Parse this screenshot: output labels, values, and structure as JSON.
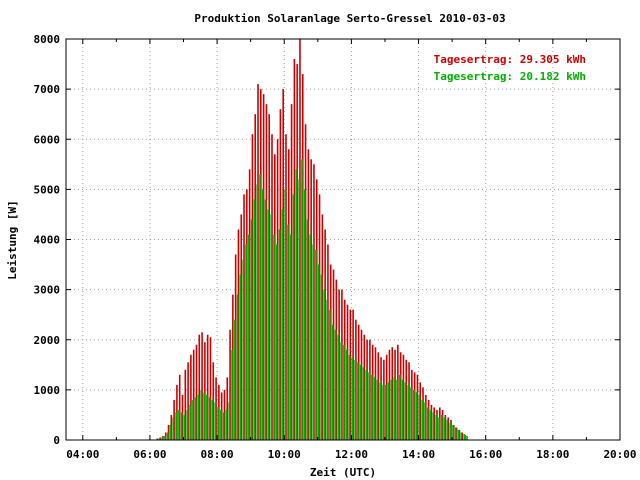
{
  "chart_data": {
    "type": "bar",
    "title": "Produktion Solaranlage Serto-Gressel 2010-03-03",
    "xlabel": "Zeit (UTC)",
    "ylabel": "Leistung [W]",
    "xlim": [
      3.5,
      20.0
    ],
    "ylim": [
      0,
      8000
    ],
    "xticks": [
      {
        "value": 4,
        "label": "04:00"
      },
      {
        "value": 6,
        "label": "06:00"
      },
      {
        "value": 8,
        "label": "08:00"
      },
      {
        "value": 10,
        "label": "10:00"
      },
      {
        "value": 12,
        "label": "12:00"
      },
      {
        "value": 14,
        "label": "14:00"
      },
      {
        "value": 16,
        "label": "16:00"
      },
      {
        "value": 18,
        "label": "18:00"
      },
      {
        "value": 20,
        "label": "20:00"
      }
    ],
    "yticks": [
      0,
      1000,
      2000,
      3000,
      4000,
      5000,
      6000,
      7000,
      8000
    ],
    "grid": true,
    "legend_position": "top-right",
    "x_start": 6.25,
    "x_step": 0.0833,
    "series": [
      {
        "legend": "Tagesertrag: 29.305 kWh",
        "color": "#cc0000",
        "values": [
          30,
          50,
          80,
          150,
          300,
          500,
          800,
          1100,
          1300,
          900,
          1400,
          1550,
          1700,
          1800,
          1900,
          2100,
          2150,
          1950,
          2100,
          2050,
          1550,
          1250,
          1100,
          950,
          1000,
          1250,
          2200,
          2900,
          3700,
          4200,
          4500,
          4900,
          5000,
          5400,
          6100,
          6500,
          7100,
          7000,
          6900,
          6700,
          6500,
          6100,
          5700,
          6000,
          6600,
          7000,
          6100,
          5800,
          6700,
          7600,
          7500,
          8000,
          7300,
          6300,
          5800,
          5600,
          5500,
          5200,
          4900,
          4500,
          4200,
          3900,
          3500,
          3400,
          3200,
          3000,
          3000,
          2800,
          2700,
          2600,
          2600,
          2400,
          2300,
          2200,
          2100,
          2000,
          2000,
          1900,
          1850,
          1750,
          1650,
          1600,
          1700,
          1800,
          1850,
          1800,
          1900,
          1750,
          1700,
          1600,
          1550,
          1400,
          1350,
          1300,
          1150,
          1050,
          900,
          800,
          700,
          650,
          600,
          650,
          600,
          500,
          450,
          400,
          300,
          250,
          200,
          150,
          100
        ]
      },
      {
        "legend": "Tagesertrag: 20.182 kWh",
        "color": "#00b000",
        "values": [
          30,
          50,
          80,
          150,
          300,
          450,
          550,
          600,
          550,
          500,
          600,
          700,
          800,
          850,
          900,
          1000,
          950,
          900,
          850,
          800,
          750,
          650,
          600,
          550,
          600,
          750,
          1800,
          2400,
          2900,
          3300,
          3600,
          3900,
          4100,
          4400,
          4800,
          5100,
          5300,
          5000,
          4800,
          4600,
          4500,
          4100,
          3900,
          4200,
          4600,
          5000,
          4300,
          4100,
          4900,
          5400,
          5200,
          5600,
          5000,
          4400,
          4100,
          3900,
          3800,
          3500,
          3300,
          3000,
          2800,
          2600,
          2300,
          2200,
          2100,
          1950,
          1900,
          1800,
          1700,
          1650,
          1600,
          1550,
          1500,
          1450,
          1400,
          1350,
          1300,
          1250,
          1200,
          1150,
          1100,
          1100,
          1150,
          1200,
          1250,
          1200,
          1300,
          1200,
          1150,
          1100,
          1050,
          1000,
          950,
          900,
          800,
          750,
          650,
          600,
          550,
          500,
          450,
          500,
          450,
          400,
          350,
          300,
          250,
          200,
          150,
          120,
          80
        ]
      }
    ]
  }
}
